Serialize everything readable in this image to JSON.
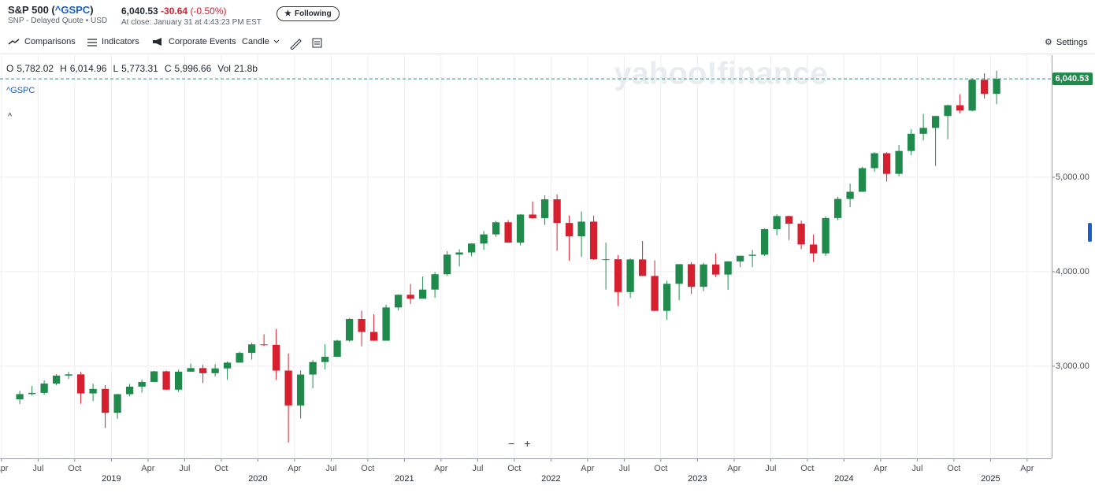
{
  "header": {
    "name": "S&P 500 (",
    "symbol": "^GSPC",
    "name_end": ")",
    "subtitle": "SNP - Delayed Quote • USD",
    "price": "6,040.53",
    "change": "-30.64",
    "change_pct": "(-0.50%)",
    "close_time": "At close: January 31 at 4:43:23 PM EST",
    "follow": "Following"
  },
  "toolbar": {
    "comparisons": "Comparisons",
    "indicators": "Indicators",
    "events": "Corporate Events",
    "chart_type": "Candle",
    "settings": "Settings"
  },
  "readout": [
    {
      "k": "O",
      "v": "5,782.02"
    },
    {
      "k": "H",
      "v": "6,014.96"
    },
    {
      "k": "L",
      "v": "5,773.31"
    },
    {
      "k": "C",
      "v": "5,996.66"
    },
    {
      "k": "Vol",
      "v": "21.8b"
    }
  ],
  "legend": "^GSPC",
  "watermark": "yahoo!finance",
  "chart_data": {
    "type": "candlestick",
    "up_color": "#1f8a4c",
    "down_color": "#d6202f",
    "grid": true,
    "ylim": [
      2025,
      6292
    ],
    "yticks": [
      {
        "value": 3000,
        "label": "3,000.00"
      },
      {
        "value": 4000,
        "label": "4,000.00"
      },
      {
        "value": 5000,
        "label": "5,000.00"
      }
    ],
    "last_price": {
      "value": 6040.53,
      "label": "6,040.53"
    },
    "xticks": [
      {
        "value": "2018-04",
        "label": "Apr"
      },
      {
        "value": "2018-07",
        "label": "Jul"
      },
      {
        "value": "2018-10",
        "label": "Oct"
      },
      {
        "value": "2019-01",
        "label": "2019"
      },
      {
        "value": "2019-04",
        "label": "Apr"
      },
      {
        "value": "2019-07",
        "label": "Jul"
      },
      {
        "value": "2019-10",
        "label": "Oct"
      },
      {
        "value": "2020-01",
        "label": "2020"
      },
      {
        "value": "2020-04",
        "label": "Apr"
      },
      {
        "value": "2020-07",
        "label": "Jul"
      },
      {
        "value": "2020-10",
        "label": "Oct"
      },
      {
        "value": "2021-01",
        "label": "2021"
      },
      {
        "value": "2021-04",
        "label": "Apr"
      },
      {
        "value": "2021-07",
        "label": "Jul"
      },
      {
        "value": "2021-10",
        "label": "Oct"
      },
      {
        "value": "2022-01",
        "label": "2022"
      },
      {
        "value": "2022-04",
        "label": "Apr"
      },
      {
        "value": "2022-07",
        "label": "Jul"
      },
      {
        "value": "2022-10",
        "label": "Oct"
      },
      {
        "value": "2023-01",
        "label": "2023"
      },
      {
        "value": "2023-04",
        "label": "Apr"
      },
      {
        "value": "2023-07",
        "label": "Jul"
      },
      {
        "value": "2023-10",
        "label": "Oct"
      },
      {
        "value": "2024-01",
        "label": "2024"
      },
      {
        "value": "2024-04",
        "label": "Apr"
      },
      {
        "value": "2024-07",
        "label": "Jul"
      },
      {
        "value": "2024-10",
        "label": "Oct"
      },
      {
        "value": "2025-01",
        "label": "2025"
      },
      {
        "value": "2025-04",
        "label": "Apr"
      }
    ],
    "x": [
      "2018-05",
      "2018-06",
      "2018-07",
      "2018-08",
      "2018-09",
      "2018-10",
      "2018-11",
      "2018-12",
      "2019-01",
      "2019-02",
      "2019-03",
      "2019-04",
      "2019-05",
      "2019-06",
      "2019-07",
      "2019-08",
      "2019-09",
      "2019-10",
      "2019-11",
      "2019-12",
      "2020-01",
      "2020-02",
      "2020-03",
      "2020-04",
      "2020-05",
      "2020-06",
      "2020-07",
      "2020-08",
      "2020-09",
      "2020-10",
      "2020-11",
      "2020-12",
      "2021-01",
      "2021-02",
      "2021-03",
      "2021-04",
      "2021-05",
      "2021-06",
      "2021-07",
      "2021-08",
      "2021-09",
      "2021-10",
      "2021-11",
      "2021-12",
      "2022-01",
      "2022-02",
      "2022-03",
      "2022-04",
      "2022-05",
      "2022-06",
      "2022-07",
      "2022-08",
      "2022-09",
      "2022-10",
      "2022-11",
      "2022-12",
      "2023-01",
      "2023-02",
      "2023-03",
      "2023-04",
      "2023-05",
      "2023-06",
      "2023-07",
      "2023-08",
      "2023-09",
      "2023-10",
      "2023-11",
      "2023-12",
      "2024-01",
      "2024-02",
      "2024-03",
      "2024-04",
      "2024-05",
      "2024-06",
      "2024-07",
      "2024-08",
      "2024-09",
      "2024-10",
      "2024-11",
      "2024-12",
      "2025-01"
    ],
    "open": [
      2650,
      2705,
      2718,
      2816,
      2901,
      2914,
      2712,
      2760,
      2507,
      2704,
      2784,
      2834,
      2946,
      2752,
      2942,
      2980,
      2926,
      2977,
      3038,
      3141,
      3231,
      3226,
      2954,
      2585,
      2912,
      3044,
      3100,
      3271,
      3500,
      3363,
      3270,
      3622,
      3756,
      3714,
      3811,
      3973,
      4181,
      4204,
      4298,
      4395,
      4523,
      4308,
      4605,
      4567,
      4766,
      4516,
      4374,
      4530,
      4132,
      4132,
      3785,
      4130,
      3955,
      3586,
      3872,
      4080,
      3840,
      4077,
      3970,
      4109,
      4169,
      4180,
      4450,
      4589,
      4508,
      4288,
      4194,
      4568,
      4770,
      4846,
      5096,
      5254,
      5036,
      5278,
      5460,
      5522,
      5648,
      5762,
      5705,
      6032,
      5882
    ],
    "high": [
      2740,
      2790,
      2850,
      2915,
      2940,
      2940,
      2815,
      2800,
      2708,
      2813,
      2860,
      2950,
      2955,
      2965,
      3028,
      3014,
      3022,
      3050,
      3154,
      3248,
      3338,
      3394,
      3136,
      2955,
      3068,
      3233,
      3280,
      3510,
      3588,
      3550,
      3650,
      3760,
      3870,
      3950,
      3995,
      4218,
      4238,
      4300,
      4430,
      4538,
      4546,
      4608,
      4743,
      4808,
      4818,
      4595,
      4637,
      4593,
      4307,
      4177,
      4140,
      4325,
      4120,
      3905,
      4080,
      4101,
      4095,
      4195,
      4110,
      4170,
      4231,
      4458,
      4607,
      4594,
      4541,
      4393,
      4587,
      4794,
      4932,
      5111,
      5265,
      5264,
      5342,
      5506,
      5670,
      5651,
      5768,
      5879,
      6044,
      6100,
      6129
    ],
    "low": [
      2600,
      2690,
      2700,
      2800,
      2865,
      2603,
      2631,
      2346,
      2444,
      2681,
      2722,
      2832,
      2750,
      2728,
      2952,
      2822,
      2892,
      2855,
      3050,
      3070,
      3214,
      2855,
      2192,
      2447,
      2767,
      2966,
      3100,
      3260,
      3210,
      3270,
      3280,
      3590,
      3660,
      3720,
      3723,
      3955,
      4056,
      4164,
      4233,
      4368,
      4306,
      4279,
      4560,
      4495,
      4222,
      4115,
      4157,
      4124,
      3811,
      3637,
      3722,
      3955,
      3585,
      3492,
      3699,
      3764,
      3794,
      3943,
      3809,
      4049,
      4048,
      4166,
      4385,
      4335,
      4238,
      4104,
      4168,
      4546,
      4683,
      4845,
      5056,
      4954,
      5011,
      5234,
      5390,
      5120,
      5402,
      5674,
      5697,
      5833,
      5773
    ],
    "close": [
      2705,
      2718,
      2816,
      2901,
      2914,
      2712,
      2760,
      2507,
      2704,
      2784,
      2834,
      2946,
      2752,
      2942,
      2980,
      2926,
      2977,
      3038,
      3141,
      3231,
      3226,
      2954,
      2585,
      2912,
      3044,
      3100,
      3271,
      3500,
      3363,
      3270,
      3622,
      3756,
      3714,
      3811,
      3973,
      4181,
      4204,
      4298,
      4395,
      4523,
      4308,
      4605,
      4567,
      4766,
      4516,
      4374,
      4530,
      4132,
      4132,
      3785,
      4130,
      3955,
      3586,
      3872,
      4080,
      3840,
      4077,
      3970,
      4109,
      4169,
      4180,
      4450,
      4589,
      4508,
      4288,
      4194,
      4568,
      4770,
      4846,
      5096,
      5254,
      5036,
      5278,
      5460,
      5522,
      5648,
      5762,
      5705,
      6032,
      5882,
      6040.53
    ]
  }
}
